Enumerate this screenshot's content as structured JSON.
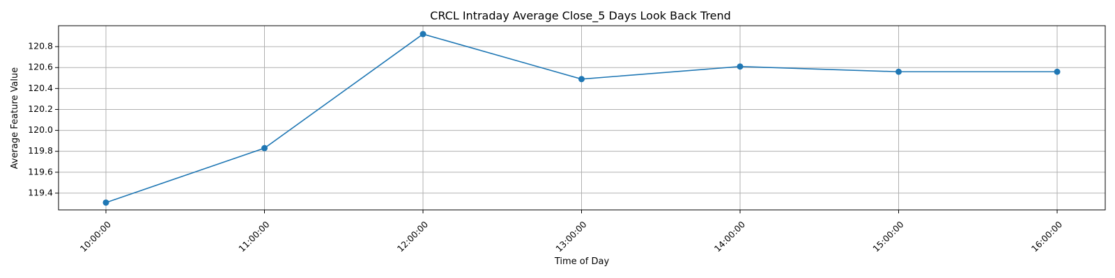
{
  "chart_data": {
    "type": "line",
    "title": "CRCL Intraday Average Close_5 Days Look Back Trend",
    "xlabel": "Time of Day",
    "ylabel": "Average Feature Value",
    "categories": [
      "10:00:00",
      "11:00:00",
      "12:00:00",
      "13:00:00",
      "14:00:00",
      "15:00:00",
      "16:00:00"
    ],
    "series": [
      {
        "values": [
          119.31,
          119.83,
          120.92,
          120.49,
          120.61,
          120.56,
          120.56
        ]
      }
    ],
    "ylim": [
      119.24,
      121.0
    ],
    "yticks": [
      "119.4",
      "119.6",
      "119.8",
      "120.0",
      "120.2",
      "120.4",
      "120.6",
      "120.8"
    ],
    "grid": true,
    "line_color": "#1f77b4",
    "marker": "circle"
  }
}
